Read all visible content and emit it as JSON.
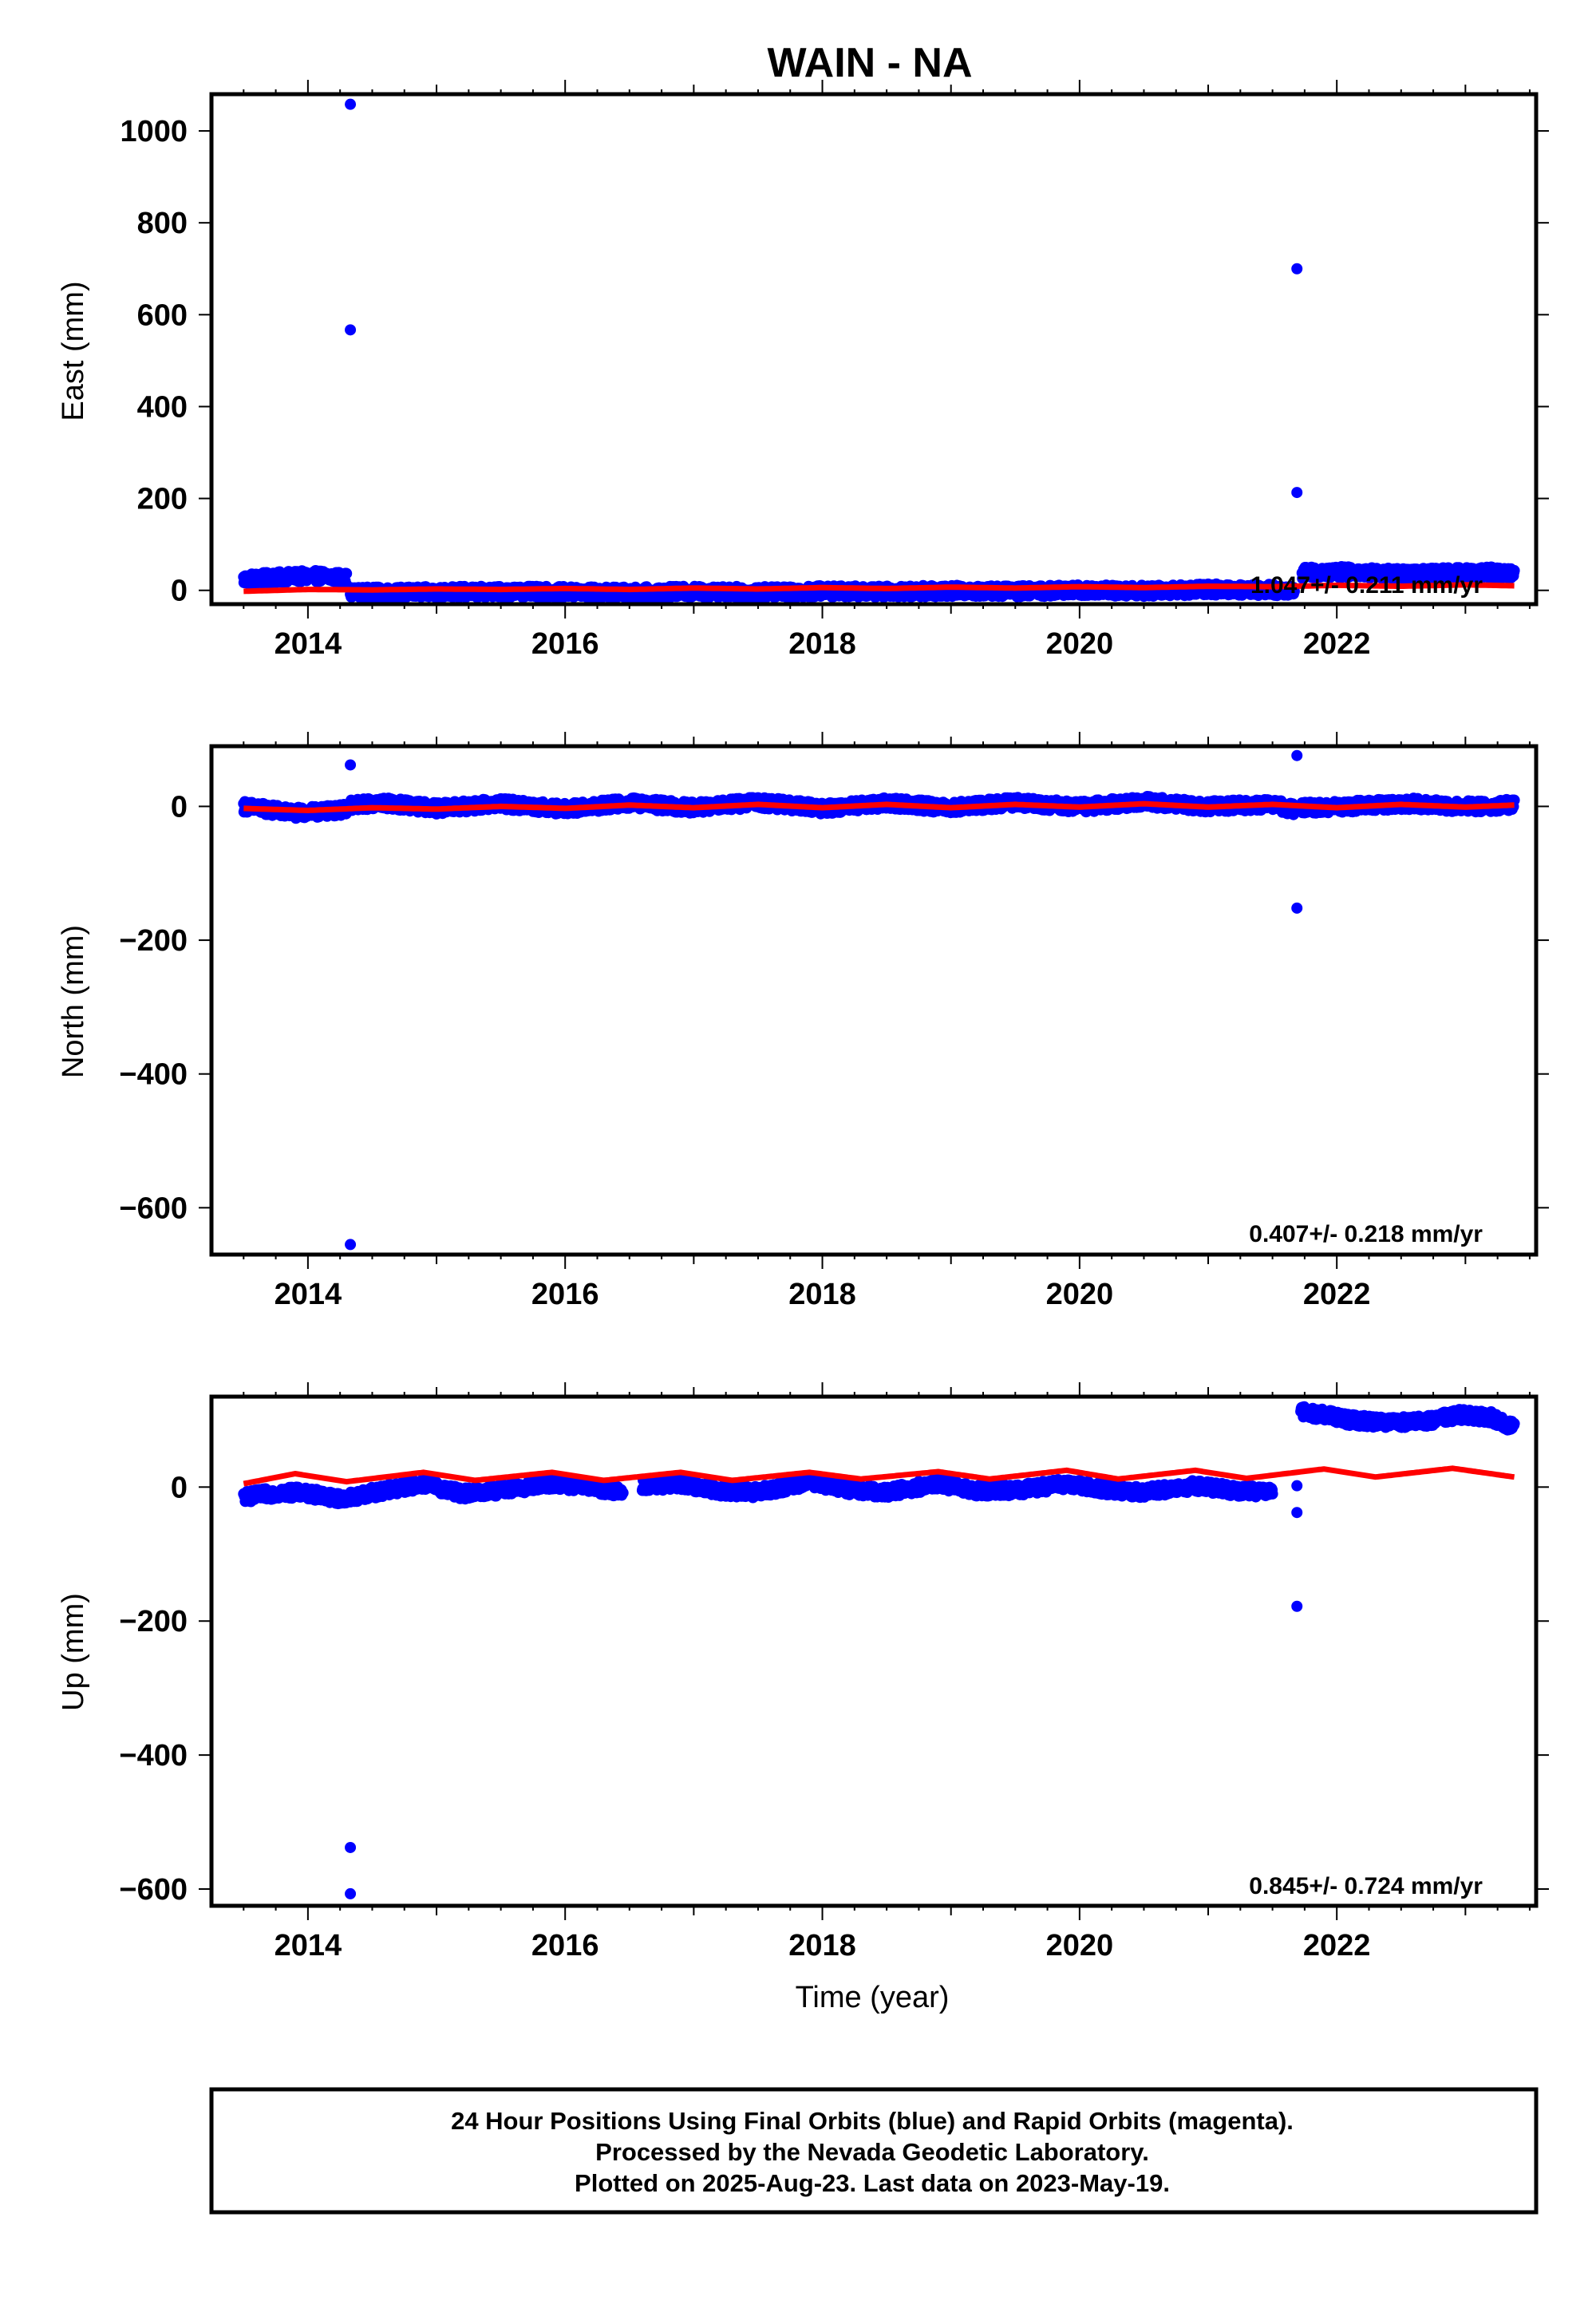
{
  "title": "WAIN - NA",
  "xlabel": "Time (year)",
  "footer": {
    "line1": "24 Hour Positions Using Final Orbits (blue) and Rapid Orbits (magenta).",
    "line2": "Processed by the Nevada Geodetic Laboratory.",
    "line3": "Plotted on 2025-Aug-23. Last data on 2023-May-19."
  },
  "colors": {
    "data": "#0000ff",
    "fit": "#ff0000",
    "frame": "#000000"
  },
  "chart_data": [
    {
      "type": "scatter",
      "component": "east",
      "ylabel": "East (mm)",
      "rate": "1.047+/- 0.211 mm/yr",
      "xlim": [
        2013.25,
        2023.55
      ],
      "ylim": [
        -30,
        1080
      ],
      "xticks": [
        2014,
        2016,
        2018,
        2020,
        2022
      ],
      "yticks": [
        0,
        200,
        400,
        600,
        800,
        1000
      ],
      "data_segments": [
        {
          "x": [
            2013.5,
            2013.7,
            2013.9,
            2014.1,
            2014.3
          ],
          "y": [
            24,
            27,
            30,
            31,
            26
          ]
        },
        {
          "x": [
            2014.33,
            2014.6,
            2015.0,
            2015.5,
            2016.0,
            2016.5,
            2017.0,
            2017.5,
            2018.0,
            2018.5,
            2019.0,
            2019.5,
            2020.0,
            2020.5,
            2021.0,
            2021.5,
            2021.67
          ],
          "y": [
            -5,
            -5,
            -4,
            -3,
            -4,
            -5,
            -3,
            -4,
            -2,
            -3,
            -1,
            -2,
            0,
            -1,
            2,
            1,
            0
          ]
        },
        {
          "x": [
            2021.73,
            2022.0,
            2022.3,
            2022.6,
            2022.9,
            2023.2,
            2023.38
          ],
          "y": [
            38,
            40,
            38,
            35,
            38,
            40,
            35
          ]
        }
      ],
      "outliers": [
        {
          "x": 2014.33,
          "y": 1058
        },
        {
          "x": 2014.33,
          "y": 567
        },
        {
          "x": 2021.69,
          "y": 700
        },
        {
          "x": 2021.69,
          "y": 213
        }
      ],
      "fit": {
        "x": [
          2013.5,
          2014.0,
          2014.5,
          2015.0,
          2015.5,
          2016.0,
          2016.5,
          2017.0,
          2017.5,
          2018.0,
          2018.5,
          2019.0,
          2019.5,
          2020.0,
          2020.5,
          2021.0,
          2021.5,
          2022.0,
          2022.5,
          2023.0,
          2023.38
        ],
        "y": [
          -2,
          2,
          1,
          3,
          2,
          4,
          2,
          5,
          3,
          6,
          4,
          7,
          5,
          8,
          6,
          9,
          8,
          11,
          9,
          12,
          10
        ]
      }
    },
    {
      "type": "scatter",
      "component": "north",
      "ylabel": "North (mm)",
      "rate": "0.407+/- 0.218 mm/yr",
      "xlim": [
        2013.25,
        2023.55
      ],
      "ylim": [
        -670,
        90
      ],
      "xticks": [
        2014,
        2016,
        2018,
        2020,
        2022
      ],
      "yticks": [
        -600,
        -400,
        -200,
        0
      ],
      "data_segments": [
        {
          "x": [
            2013.5,
            2013.7,
            2013.9,
            2014.1,
            2014.3
          ],
          "y": [
            0,
            -5,
            -10,
            -8,
            -5
          ]
        },
        {
          "x": [
            2014.33,
            2014.6,
            2015.0,
            2015.5,
            2016.0,
            2016.5,
            2017.0,
            2017.5,
            2018.0,
            2018.5,
            2019.0,
            2019.5,
            2020.0,
            2020.5,
            2021.0,
            2021.5,
            2021.67
          ],
          "y": [
            2,
            5,
            -3,
            4,
            -4,
            5,
            -2,
            6,
            -3,
            5,
            -2,
            6,
            -1,
            7,
            0,
            3,
            -5
          ]
        },
        {
          "x": [
            2021.73,
            2022.0,
            2022.3,
            2022.6,
            2022.9,
            2023.2,
            2023.38
          ],
          "y": [
            -2,
            -1,
            2,
            4,
            0,
            0,
            3
          ]
        }
      ],
      "outliers": [
        {
          "x": 2014.33,
          "y": 62
        },
        {
          "x": 2014.33,
          "y": -655
        },
        {
          "x": 2021.69,
          "y": 76
        },
        {
          "x": 2021.69,
          "y": -152
        }
      ],
      "fit": {
        "x": [
          2013.5,
          2014.0,
          2014.5,
          2015.0,
          2015.5,
          2016.0,
          2016.5,
          2017.0,
          2017.5,
          2018.0,
          2018.5,
          2019.0,
          2019.5,
          2020.0,
          2020.5,
          2021.0,
          2021.5,
          2022.0,
          2022.5,
          2023.0,
          2023.38
        ],
        "y": [
          -3,
          -6,
          -2,
          -4,
          0,
          -3,
          2,
          -2,
          3,
          -2,
          3,
          -2,
          3,
          -1,
          4,
          -1,
          3,
          -2,
          3,
          -1,
          2
        ]
      }
    },
    {
      "type": "scatter",
      "component": "up",
      "ylabel": "Up (mm)",
      "rate": "0.845+/- 0.724 mm/yr",
      "xlim": [
        2013.25,
        2023.55
      ],
      "ylim": [
        -625,
        135
      ],
      "xticks": [
        2014,
        2016,
        2018,
        2020,
        2022
      ],
      "yticks": [
        -600,
        -400,
        -200,
        0
      ],
      "data_segments": [
        {
          "x": [
            2013.5,
            2013.7,
            2013.9,
            2014.1,
            2014.3
          ],
          "y": [
            -15,
            -10,
            -8,
            -12,
            -20
          ]
        },
        {
          "x": [
            2014.33,
            2014.6,
            2014.9,
            2015.2,
            2015.5,
            2015.9,
            2016.2,
            2016.45
          ],
          "y": [
            -15,
            -5,
            5,
            -10,
            -5,
            5,
            0,
            -8
          ]
        },
        {
          "x": [
            2016.6,
            2016.9,
            2017.2,
            2017.5,
            2017.9,
            2018.2,
            2018.5,
            2018.9,
            2019.2,
            2019.5,
            2019.9,
            2020.2,
            2020.5,
            2020.9,
            2021.2,
            2021.5
          ],
          "y": [
            2,
            5,
            -5,
            -8,
            8,
            -3,
            -8,
            5,
            -5,
            -5,
            5,
            -3,
            -8,
            2,
            -5,
            -8
          ]
        },
        {
          "x": [
            2021.72,
            2021.9,
            2022.1,
            2022.4,
            2022.7,
            2022.95,
            2023.2,
            2023.38
          ],
          "y": [
            112,
            108,
            100,
            96,
            98,
            108,
            104,
            88
          ]
        }
      ],
      "outliers": [
        {
          "x": 2014.33,
          "y": -538
        },
        {
          "x": 2014.33,
          "y": -607
        },
        {
          "x": 2021.69,
          "y": -38
        },
        {
          "x": 2021.69,
          "y": -178
        },
        {
          "x": 2021.69,
          "y": 2
        }
      ],
      "fit": {
        "x": [
          2013.5,
          2013.9,
          2014.3,
          2014.9,
          2015.3,
          2015.9,
          2016.3,
          2016.9,
          2017.3,
          2017.9,
          2018.3,
          2018.9,
          2019.3,
          2019.9,
          2020.3,
          2020.9,
          2021.3,
          2021.9,
          2022.3,
          2022.9,
          2023.38
        ],
        "y": [
          5,
          20,
          8,
          22,
          10,
          22,
          10,
          22,
          10,
          22,
          12,
          23,
          12,
          25,
          12,
          25,
          13,
          27,
          15,
          28,
          15
        ]
      }
    }
  ]
}
